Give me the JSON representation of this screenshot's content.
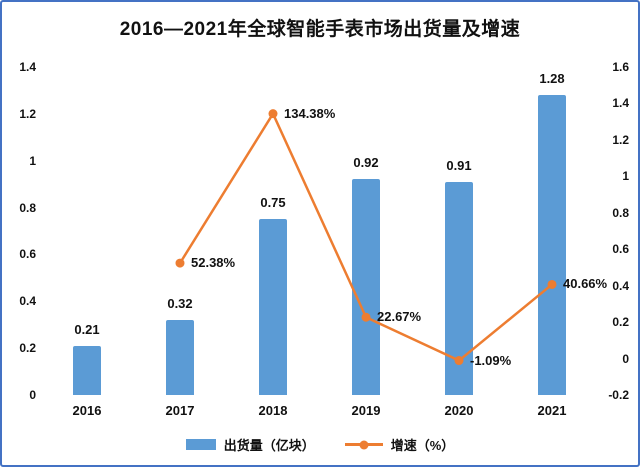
{
  "colors": {
    "bar": "#5B9BD5",
    "line": "#ED7D31",
    "border": "#4472C4",
    "text": "#111111"
  },
  "chart_data": {
    "type": "bar+line",
    "title": "2016—2021年全球智能手表市场出货量及增速",
    "categories": [
      "2016",
      "2017",
      "2018",
      "2019",
      "2020",
      "2021"
    ],
    "series": [
      {
        "name": "出货量（亿块）",
        "type": "bar",
        "axis": "left",
        "values": [
          0.21,
          0.32,
          0.75,
          0.92,
          0.91,
          1.28
        ],
        "labels": [
          "0.21",
          "0.32",
          "0.75",
          "0.92",
          "0.91",
          "1.28"
        ]
      },
      {
        "name": "增速（%）",
        "type": "line",
        "axis": "right",
        "values": [
          null,
          52.38,
          134.38,
          22.67,
          -1.09,
          40.66
        ],
        "labels": [
          null,
          "52.38%",
          "134.38%",
          "22.67%",
          "-1.09%",
          "40.66%"
        ]
      }
    ],
    "left_axis": {
      "min": 0,
      "max": 1.4,
      "ticks": [
        "1.4",
        "1.2",
        "1",
        "0.8",
        "0.6",
        "0.4",
        "0.2",
        "0"
      ]
    },
    "right_axis": {
      "min": -0.2,
      "max": 1.6,
      "ticks": [
        "1.6",
        "1.4",
        "1.2",
        "1",
        "0.8",
        "0.6",
        "0.4",
        "0.2",
        "0",
        "-0.2"
      ]
    },
    "grid": false,
    "legend_position": "bottom"
  }
}
